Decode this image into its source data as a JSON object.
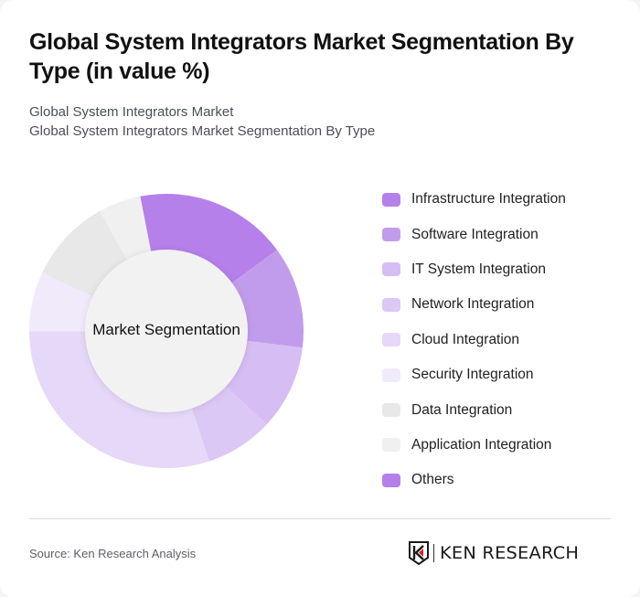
{
  "header": {
    "title": "Global System Integrators Market Segmentation By Type (in value %)",
    "subtitle_line1": "Global System Integrators Market",
    "subtitle_line2": "Global System Integrators Market Segmentation By Type"
  },
  "chart": {
    "center_label": "Market Segmentation"
  },
  "legend": [
    {
      "label": "Infrastructure Integration",
      "color": "#B580EA"
    },
    {
      "label": "Software Integration",
      "color": "#C29CEC"
    },
    {
      "label": "IT System Integration",
      "color": "#D6BDF3"
    },
    {
      "label": "Network Integration",
      "color": "#DCC8F4"
    },
    {
      "label": "Cloud Integration",
      "color": "#E6D8F8"
    },
    {
      "label": "Security Integration",
      "color": "#F1EAFB"
    },
    {
      "label": "Data Integration",
      "color": "#E8E8E8"
    },
    {
      "label": "Application Integration",
      "color": "#F0F0F0"
    },
    {
      "label": "Others",
      "color": "#B580EA"
    }
  ],
  "footer": {
    "source": "Source: Ken Research Analysis",
    "logo_text": "KEN RESEARCH"
  },
  "chart_data": {
    "type": "pie",
    "variant": "donut",
    "title": "Global System Integrators Market Segmentation By Type (in value %)",
    "subtitle": "Global System Integrators Market Segmentation By Type",
    "center_label": "Market Segmentation",
    "categories": [
      "Infrastructure Integration",
      "Software Integration",
      "IT System Integration",
      "Network Integration",
      "Cloud Integration",
      "Security Integration",
      "Data Integration",
      "Application Integration",
      "Others"
    ],
    "values": [
      18,
      12,
      10,
      8,
      30,
      7,
      10,
      5,
      0
    ],
    "colors": [
      "#B580EA",
      "#C29CEC",
      "#D6BDF3",
      "#DCC8F4",
      "#E6D8F8",
      "#F1EAFB",
      "#E8E8E8",
      "#F0F0F0",
      "#B580EA"
    ],
    "start_angle_deg": -11,
    "direction": "clockwise",
    "unit": "%",
    "legend_position": "right",
    "data_labels": false
  }
}
